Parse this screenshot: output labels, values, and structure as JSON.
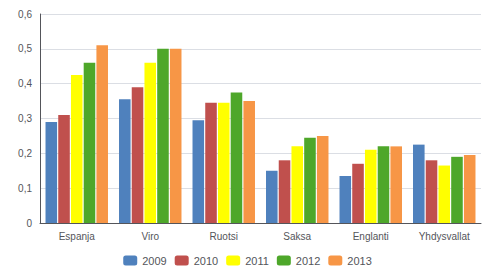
{
  "chart_data": {
    "type": "bar",
    "categories": [
      "Espanja",
      "Viro",
      "Ruotsi",
      "Saksa",
      "Englanti",
      "Yhdysvallat"
    ],
    "series": [
      {
        "name": "2009",
        "color": "#4F81BD",
        "values": [
          0.29,
          0.355,
          0.295,
          0.15,
          0.135,
          0.225
        ]
      },
      {
        "name": "2010",
        "color": "#C0504D",
        "values": [
          0.31,
          0.39,
          0.345,
          0.18,
          0.17,
          0.18
        ]
      },
      {
        "name": "2011",
        "color": "#FFFF00",
        "values": [
          0.425,
          0.46,
          0.345,
          0.22,
          0.21,
          0.165
        ]
      },
      {
        "name": "2012",
        "color": "#4EA72A",
        "values": [
          0.46,
          0.5,
          0.375,
          0.245,
          0.22,
          0.19
        ]
      },
      {
        "name": "2013",
        "color": "#F79646",
        "values": [
          0.51,
          0.5,
          0.35,
          0.25,
          0.22,
          0.195
        ]
      }
    ],
    "ylim": [
      0,
      0.6
    ],
    "yticks": [
      0,
      {
        "value": 0.1,
        "label": "0,1"
      },
      {
        "value": 0.2,
        "label": "0,2"
      },
      {
        "value": 0.3,
        "label": "0,3"
      },
      {
        "value": 0.4,
        "label": "0,4"
      },
      {
        "value": 0.5,
        "label": "0,5"
      },
      {
        "value": 0.6,
        "label": "0,6"
      }
    ],
    "grid": true,
    "legend": "bottom"
  }
}
